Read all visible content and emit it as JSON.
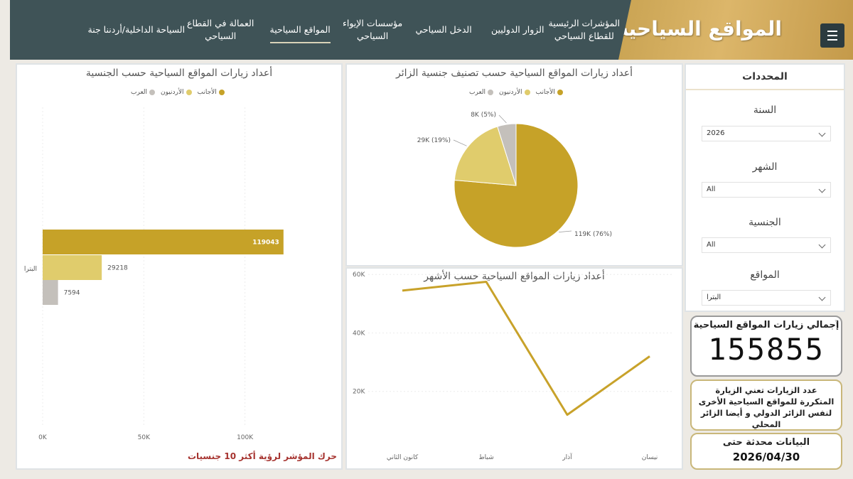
{
  "header": {
    "title": "المواقع السياحية",
    "nav": [
      "المؤشرات الرئيسية\nللقطاع السياحي",
      "الزوار الدوليين",
      "الدخل السياحي",
      "مؤسسات الإيواء\nالسياحي",
      "المواقع السياحية",
      "العمالة في القطاع\nالسياحي",
      "السياحة الداخلية/أردننا جنة"
    ],
    "active_nav": "المواقع السياحية"
  },
  "filters": {
    "title": "المحددات",
    "year": {
      "label": "السنة",
      "value": "2026"
    },
    "month": {
      "label": "الشهر",
      "value": "All"
    },
    "nationality": {
      "label": "الجنسية",
      "value": "All"
    },
    "site": {
      "label": "المواقع",
      "value": "البترا"
    }
  },
  "kpi": {
    "label": "إجمالي زيارات المواقع السياحية",
    "value": "155855"
  },
  "note": "عدد الزيارات تعني الزيارة المتكررة للمواقع السياحية الأخرى لنفس الزائر الدولي و أيضا الزائر المحلي",
  "updated": {
    "label": "البيانات محدثة حتى",
    "date": "2026/04/30"
  },
  "bar_panel": {
    "title": "أعداد زيارات المواقع السياحية حسب الجنسية",
    "hint": "حرك المؤشر لرؤية أكثر 10 جنسيات"
  },
  "pie_panel": {
    "title": "أعداد زيارات المواقع السياحية حسب تصنيف جنسية الزائر"
  },
  "line_panel": {
    "title": "أعداد زيارات المواقع السياحية حسب الأشهر"
  },
  "colors": {
    "foreign": "#c6a228",
    "jordanian": "#e0cc6c",
    "arab": "#c4c0bb",
    "navy": "#3f5357",
    "line": "#c8a22a"
  },
  "chart_data": [
    {
      "type": "bar",
      "title": "أعداد زيارات المواقع السياحية حسب الجنسية",
      "categories": [
        "البترا"
      ],
      "series": [
        {
          "name": "الأجانب",
          "values": [
            119043
          ]
        },
        {
          "name": "الأردنيون",
          "values": [
            29218
          ]
        },
        {
          "name": "العرب",
          "values": [
            7594
          ]
        }
      ],
      "xticks": [
        "0K",
        "50K",
        "100K"
      ],
      "xlim": [
        0,
        130000
      ],
      "legend": "top"
    },
    {
      "type": "pie",
      "title": "أعداد زيارات المواقع السياحية حسب تصنيف جنسية الزائر",
      "slices": [
        {
          "name": "الأجانب",
          "value": 119043,
          "label": "119K (76%)"
        },
        {
          "name": "الأردنيون",
          "value": 29218,
          "label": "29K (19%)"
        },
        {
          "name": "العرب",
          "value": 7594,
          "label": "8K (5%)"
        }
      ],
      "legend": "top"
    },
    {
      "type": "line",
      "title": "أعداد زيارات المواقع السياحية حسب الأشهر",
      "x": [
        "كانون الثاني",
        "شباط",
        "آذار",
        "نيسان"
      ],
      "values": [
        54500,
        57500,
        12000,
        32000
      ],
      "yticks": [
        "20K",
        "40K",
        "60K"
      ],
      "ylim": [
        0,
        62000
      ]
    }
  ]
}
